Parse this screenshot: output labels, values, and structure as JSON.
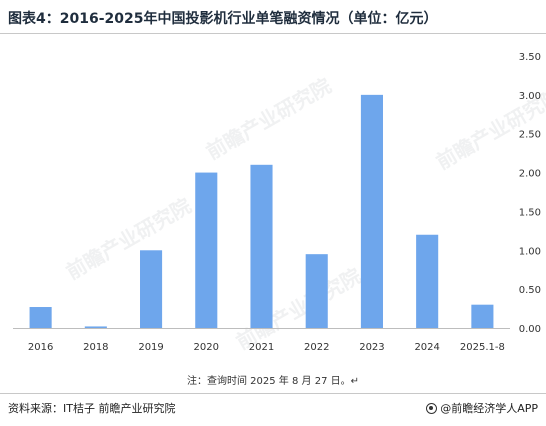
{
  "title": "图表4：2016-2025年中国投影机行业单笔融资情况（单位：亿元）",
  "note": "注：查询时间 2025 年 8 月 27 日。↵",
  "source": "资料来源：IT桔子 前瞻产业研究院",
  "brand": "@前瞻经济学人APP",
  "watermark": "前瞻产业研究院",
  "colors": {
    "bar": "#6ea6ec"
  },
  "chart_data": {
    "type": "bar",
    "categories": [
      "2016",
      "2018",
      "2019",
      "2020",
      "2021",
      "2022",
      "2023",
      "2024",
      "2025.1-8"
    ],
    "values": [
      0.27,
      0.02,
      1.0,
      2.0,
      2.1,
      0.95,
      3.0,
      1.2,
      0.3
    ],
    "yticks": [
      "0.00",
      "0.50",
      "1.00",
      "1.50",
      "2.00",
      "2.50",
      "3.00",
      "3.50"
    ],
    "ylim": [
      0,
      3.5
    ],
    "y_axis_side": "right",
    "grid": false
  }
}
